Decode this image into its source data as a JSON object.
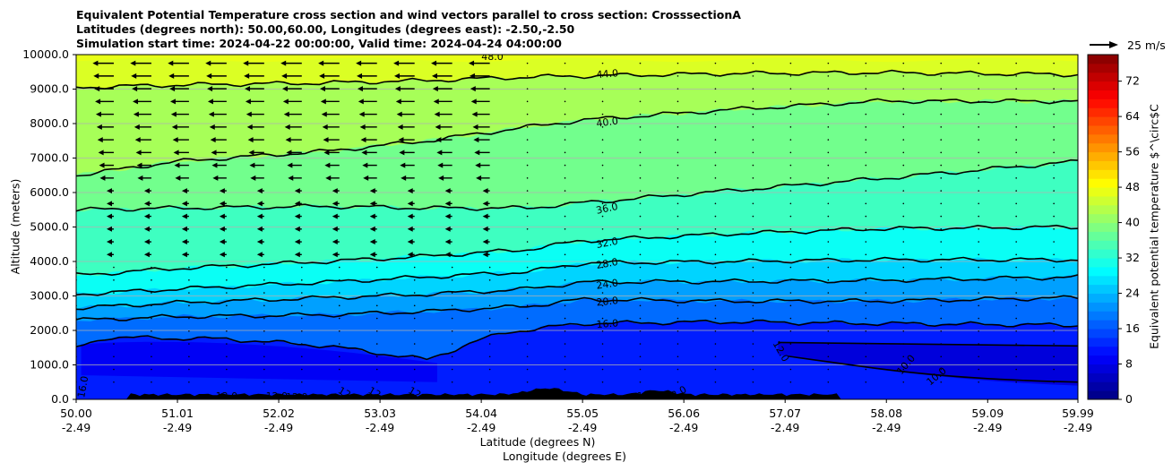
{
  "chart_data": {
    "type": "contourf",
    "title_lines": [
      "Equivalent Potential Temperature cross section and wind vectors parallel to cross section: CrosssectionA",
      "Latitudes (degrees north): 50.00,60.00, Longitudes (degrees east): -2.50,-2.50",
      "Simulation start time: 2024-04-22 00:00:00, Valid time: 2024-04-24 04:00:00"
    ],
    "xlabel_lines": [
      "Latitude (degrees N)",
      "Longitude (degrees E)"
    ],
    "ylabel": "Altitude (meters)",
    "colorbar_label": "Equivalent potential temperature $^\\circ$C",
    "reference_vector_label": "25 m/s",
    "x_ticks": [
      {
        "lat": "50.00",
        "lon": "-2.49"
      },
      {
        "lat": "51.01",
        "lon": "-2.49"
      },
      {
        "lat": "52.02",
        "lon": "-2.49"
      },
      {
        "lat": "53.03",
        "lon": "-2.49"
      },
      {
        "lat": "54.04",
        "lon": "-2.49"
      },
      {
        "lat": "55.05",
        "lon": "-2.49"
      },
      {
        "lat": "56.06",
        "lon": "-2.49"
      },
      {
        "lat": "57.07",
        "lon": "-2.49"
      },
      {
        "lat": "58.08",
        "lon": "-2.49"
      },
      {
        "lat": "59.09",
        "lon": "-2.49"
      },
      {
        "lat": "59.99",
        "lon": "-2.49"
      }
    ],
    "xlim": [
      50.0,
      59.99
    ],
    "y_ticks": [
      "0.0",
      "1000.0",
      "2000.0",
      "3000.0",
      "4000.0",
      "5000.0",
      "6000.0",
      "7000.0",
      "8000.0",
      "9000.0",
      "10000.0"
    ],
    "ylim": [
      0,
      10000
    ],
    "colorbar_ticks": [
      0,
      8,
      16,
      24,
      32,
      40,
      48,
      56,
      64,
      72
    ],
    "colorbar_range": [
      0,
      78
    ],
    "grid_y": true,
    "contour_levels": [
      {
        "value": 44,
        "label": "44.0",
        "profile": [
          [
            50.0,
            9050
          ],
          [
            51.0,
            9120
          ],
          [
            52.5,
            9180
          ],
          [
            53.5,
            9250
          ],
          [
            54.5,
            9350
          ],
          [
            55.05,
            9380
          ],
          [
            56.5,
            9450
          ],
          [
            58.0,
            9480
          ],
          [
            59.99,
            9420
          ]
        ]
      },
      {
        "value": 40,
        "label": "40.0",
        "profile": [
          [
            50.0,
            6500
          ],
          [
            51.0,
            6900
          ],
          [
            52.5,
            7200
          ],
          [
            53.5,
            7500
          ],
          [
            54.5,
            7900
          ],
          [
            55.05,
            8100
          ],
          [
            56.5,
            8400
          ],
          [
            58.0,
            8650
          ],
          [
            59.99,
            8650
          ]
        ]
      },
      {
        "value": 36,
        "label": "36.0",
        "profile": [
          [
            50.0,
            5500
          ],
          [
            51.0,
            5550
          ],
          [
            52.5,
            5600
          ],
          [
            53.5,
            5550
          ],
          [
            54.5,
            5550
          ],
          [
            55.05,
            5700
          ],
          [
            56.5,
            6050
          ],
          [
            58.0,
            6400
          ],
          [
            59.99,
            6900
          ]
        ]
      },
      {
        "value": 32,
        "label": "32.0",
        "profile": [
          [
            50.0,
            3600
          ],
          [
            51.0,
            3800
          ],
          [
            52.5,
            4000
          ],
          [
            53.5,
            4150
          ],
          [
            54.5,
            4350
          ],
          [
            55.05,
            4600
          ],
          [
            56.5,
            4800
          ],
          [
            58.0,
            4950
          ],
          [
            59.99,
            5000
          ]
        ]
      },
      {
        "value": 28,
        "label": "28.0",
        "profile": [
          [
            50.0,
            3050
          ],
          [
            51.0,
            3200
          ],
          [
            52.5,
            3400
          ],
          [
            53.5,
            3550
          ],
          [
            54.5,
            3700
          ],
          [
            55.05,
            3950
          ],
          [
            56.5,
            4000
          ],
          [
            58.0,
            4050
          ],
          [
            59.99,
            4050
          ]
        ]
      },
      {
        "value": 24,
        "label": "24.0",
        "profile": [
          [
            50.0,
            2650
          ],
          [
            51.0,
            2800
          ],
          [
            52.5,
            2950
          ],
          [
            53.5,
            3050
          ],
          [
            54.5,
            3200
          ],
          [
            55.05,
            3400
          ],
          [
            56.5,
            3420
          ],
          [
            58.0,
            3450
          ],
          [
            59.99,
            3550
          ]
        ]
      },
      {
        "value": 20,
        "label": "20.0",
        "profile": [
          [
            50.0,
            2300
          ],
          [
            51.0,
            2400
          ],
          [
            52.5,
            2450
          ],
          [
            53.5,
            2550
          ],
          [
            54.5,
            2700
          ],
          [
            55.05,
            2900
          ],
          [
            56.5,
            2850
          ],
          [
            58.0,
            2850
          ],
          [
            59.99,
            2950
          ]
        ]
      },
      {
        "value": 16,
        "label": "16.0",
        "profile": [
          [
            50.0,
            1500
          ],
          [
            50.3,
            1800
          ],
          [
            51.5,
            1750
          ],
          [
            52.5,
            1550
          ],
          [
            53.5,
            1150
          ],
          [
            54.0,
            1700
          ],
          [
            54.3,
            1950
          ],
          [
            55.05,
            2200
          ],
          [
            56.5,
            2250
          ],
          [
            58.0,
            2200
          ],
          [
            59.99,
            2150
          ]
        ]
      }
    ],
    "inline_contour_labels": [
      "48.0",
      "44.0",
      "40.0",
      "36.0",
      "32.0",
      "28.0",
      "24.0",
      "20.0",
      "16.0",
      "12.0",
      "16.0",
      "12.0",
      "12.0",
      "12.0",
      "12.0",
      "12.0",
      "12.0",
      "10.0",
      "16.0",
      "12.0",
      "10.0"
    ],
    "wind_vectors_note": "westward-pointing arrows in upper-left region (lat 50-54, alt 7000-9500 m), small elsewhere"
  }
}
